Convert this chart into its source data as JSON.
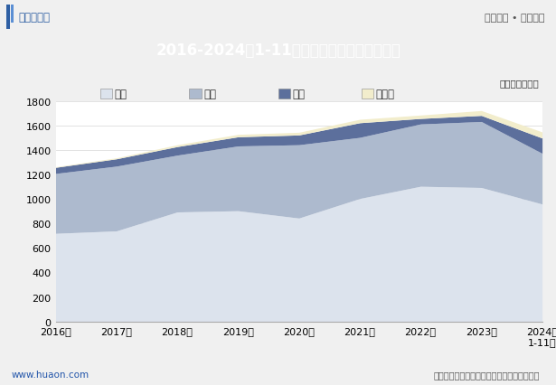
{
  "title": "2016-2024年1-11月湖南省各发电类型发电量",
  "unit_label": "单位：亿千瓦时",
  "years": [
    "2016年",
    "2017年",
    "2018年",
    "2019年",
    "2020年",
    "2021年",
    "2022年",
    "2023年",
    "2024年\n1-11月"
  ],
  "huoli": [
    720,
    740,
    895,
    905,
    845,
    1005,
    1105,
    1095,
    960
  ],
  "shuili": [
    490,
    530,
    465,
    530,
    600,
    500,
    510,
    540,
    415
  ],
  "fengli": [
    50,
    60,
    70,
    75,
    80,
    120,
    45,
    50,
    125
  ],
  "taiyang": [
    5,
    8,
    15,
    20,
    22,
    28,
    28,
    40,
    50
  ],
  "huoli_color": "#dce3ed",
  "shuili_color": "#adbace",
  "fengli_color": "#5c6f9c",
  "taiyang_color": "#f2edcc",
  "ylim": [
    0,
    1800
  ],
  "yticks": [
    0,
    200,
    400,
    600,
    800,
    1000,
    1200,
    1400,
    1600,
    1800
  ],
  "header_bg": "#2e5fa3",
  "header_text_color": "#ffffff",
  "bg_color": "#f0f0f0",
  "plot_bg_color": "#ffffff",
  "footer_text": "数据来源：国家统计局，华经产业研究院整理",
  "source_left": "www.huaon.com",
  "logo_text": "华经情报网",
  "right_text": "专业严谨 • 客观科学",
  "footer_line_color": "#2e5fa3",
  "legend_items": [
    "火力",
    "水力",
    "风力",
    "太阳能"
  ]
}
